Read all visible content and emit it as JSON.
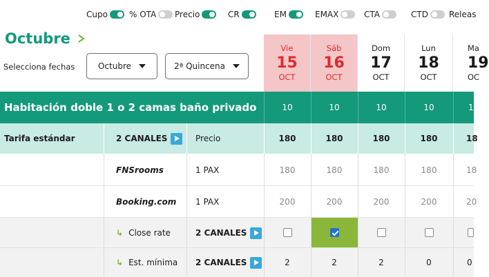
{
  "toggles": [
    {
      "label": "Cupo",
      "on": true
    },
    {
      "label": "% OTA",
      "on": false
    },
    {
      "label": "Precio",
      "on": true
    },
    {
      "label": "CR",
      "on": true
    },
    {
      "label": "EM",
      "on": true
    },
    {
      "label": "EMAX",
      "on": false
    },
    {
      "label": "CTA",
      "on": false
    },
    {
      "label": "CTD",
      "on": false
    },
    {
      "label": "Releas",
      "on": null
    }
  ],
  "header": {
    "month": "Octubre",
    "select_label": "Selecciona fechas",
    "month_dropdown": "Octubre",
    "period_dropdown": "2ª Quincena"
  },
  "days": [
    {
      "name": "Vie",
      "num": "15",
      "month": "OCT",
      "weekend": true
    },
    {
      "name": "Sáb",
      "num": "16",
      "month": "OCT",
      "weekend": true
    },
    {
      "name": "Dom",
      "num": "17",
      "month": "OCT",
      "weekend": false
    },
    {
      "name": "Lun",
      "num": "18",
      "month": "OCT",
      "weekend": false
    },
    {
      "name": "Ma",
      "num": "19",
      "month": "OC",
      "weekend": false
    }
  ],
  "room": {
    "title": "Habitación doble 1 o 2 camas baño privado",
    "availability": [
      "10",
      "10",
      "10",
      "10",
      "1"
    ]
  },
  "rate": {
    "name": "Tarifa estándar",
    "channels": "2 CANALES",
    "type": "Precio",
    "values": [
      "180",
      "180",
      "180",
      "180",
      "18"
    ]
  },
  "otas": [
    {
      "name": "FNSrooms",
      "pax": "1 PAX",
      "values": [
        "180",
        "180",
        "180",
        "180",
        "18"
      ]
    },
    {
      "name": "Booking.com",
      "pax": "1 PAX",
      "values": [
        "200",
        "200",
        "200",
        "200",
        "20"
      ]
    }
  ],
  "close_rate": {
    "label": "Close rate",
    "channels": "2 CANALES",
    "checked": [
      false,
      true,
      false,
      false,
      false
    ]
  },
  "min_stay": {
    "label": "Est. mínima",
    "channels": "2 CANALES",
    "values": [
      "2",
      "2",
      "2",
      "0",
      "0"
    ]
  },
  "colors": {
    "accent": "#14997a",
    "weekend_bg": "#f4c6c8",
    "weekend_text": "#df2a2f",
    "rate_bg": "#c8ebe3",
    "checked_cell": "#8ab73a"
  }
}
